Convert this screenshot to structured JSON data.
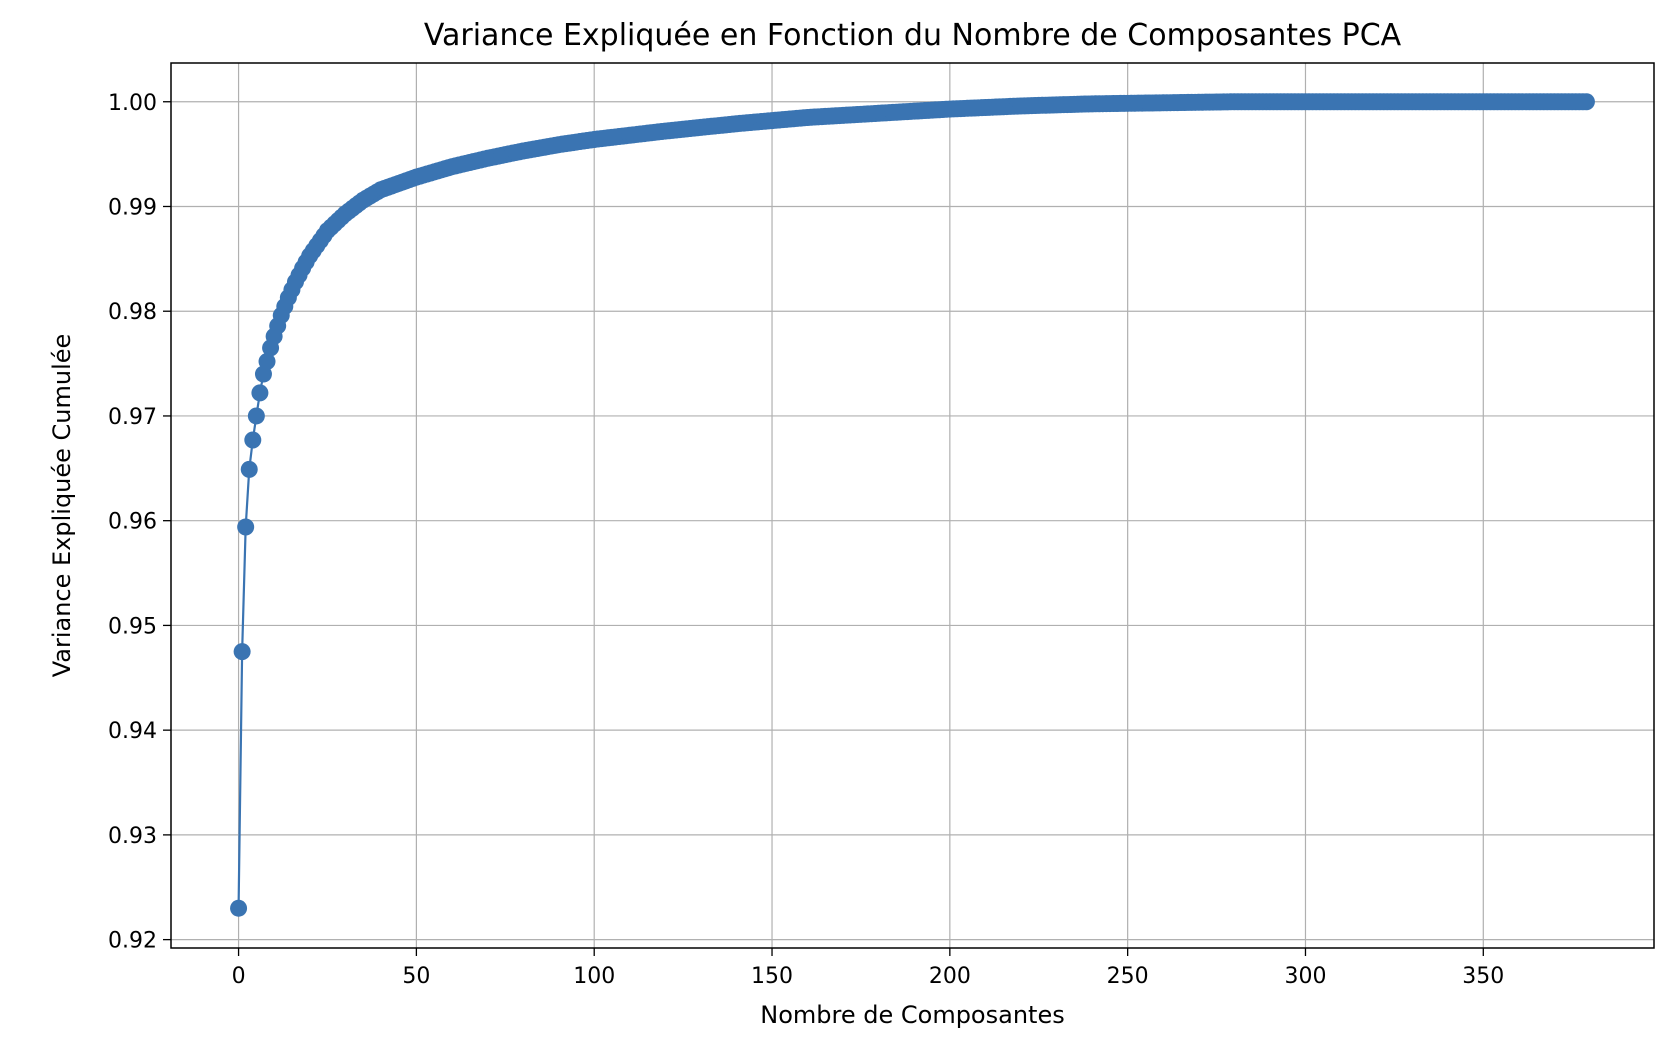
{
  "chart_data": {
    "type": "line",
    "title": "Variance Expliquée en Fonction du Nombre de Composantes PCA",
    "xlabel": "Nombre de Composantes",
    "ylabel": "Variance Expliquée Cumulée",
    "xlim": [
      -19,
      398
    ],
    "ylim": [
      0.9192,
      1.0037
    ],
    "xticks": [
      0,
      50,
      100,
      150,
      200,
      250,
      300,
      350
    ],
    "xtick_labels": [
      "0",
      "50",
      "100",
      "150",
      "200",
      "250",
      "300",
      "350"
    ],
    "yticks": [
      0.92,
      0.93,
      0.94,
      0.95,
      0.96,
      0.97,
      0.98,
      0.99,
      1.0
    ],
    "ytick_labels": [
      "0.92",
      "0.93",
      "0.94",
      "0.95",
      "0.96",
      "0.97",
      "0.98",
      "0.99",
      "1.00"
    ],
    "grid": true,
    "marker": "circle",
    "color": "#3a74b2",
    "n_points": 380,
    "x": [
      0,
      1,
      2,
      3,
      4,
      5,
      6,
      7,
      8,
      9,
      10,
      12,
      14,
      16,
      18,
      20,
      25,
      30,
      35,
      40,
      45,
      50,
      60,
      70,
      80,
      90,
      100,
      120,
      140,
      160,
      180,
      200,
      220,
      240,
      260,
      280,
      300,
      340,
      379
    ],
    "y": [
      0.923,
      0.9475,
      0.9594,
      0.9649,
      0.9677,
      0.97,
      0.9722,
      0.974,
      0.9752,
      0.9765,
      0.9776,
      0.9796,
      0.9813,
      0.9828,
      0.9841,
      0.9853,
      0.9877,
      0.9893,
      0.9906,
      0.9916,
      0.9922,
      0.9928,
      0.9938,
      0.9946,
      0.9953,
      0.9959,
      0.9964,
      0.9972,
      0.9979,
      0.9985,
      0.9989,
      0.9993,
      0.9996,
      0.9998,
      0.9999,
      1.0,
      1.0,
      1.0,
      1.0
    ]
  }
}
